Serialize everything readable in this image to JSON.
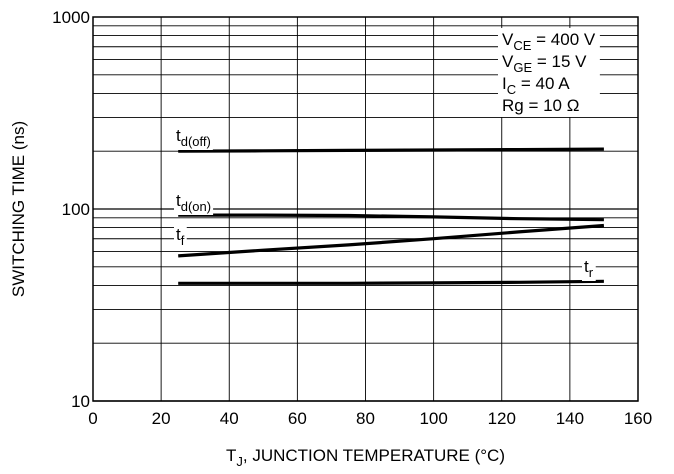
{
  "chart_data": {
    "type": "line",
    "xlabel_main": "T",
    "xlabel_sub": "J",
    "xlabel_rest": ", JUNCTION TEMPERATURE (°C)",
    "ylabel": "SWITCHING TIME (ns)",
    "x_scale": "linear",
    "y_scale": "log",
    "xlim": [
      0,
      160
    ],
    "ylim": [
      10,
      1000
    ],
    "x_ticks": [
      "0",
      "20",
      "40",
      "60",
      "80",
      "100",
      "120",
      "140",
      "160"
    ],
    "y_ticks": [
      "10",
      "100",
      "1000"
    ],
    "grid": true,
    "conditions": [
      {
        "main": "V",
        "sub": "CE",
        "rest": " = 400 V"
      },
      {
        "main": "V",
        "sub": "GE",
        "rest": " = 15 V"
      },
      {
        "main": "I",
        "sub": "C",
        "rest": " = 40 A"
      },
      {
        "main": "Rg = 10 Ω",
        "sub": "",
        "rest": ""
      }
    ],
    "series": [
      {
        "name_main": "t",
        "name_sub": "d(off)",
        "x": [
          25,
          50,
          75,
          100,
          125,
          150
        ],
        "y": [
          200,
          201,
          202,
          203,
          204,
          205
        ]
      },
      {
        "name_main": "t",
        "name_sub": "d(on)",
        "x": [
          25,
          50,
          75,
          100,
          125,
          150
        ],
        "y": [
          93,
          93,
          92.5,
          91,
          89,
          88
        ]
      },
      {
        "name_main": "t",
        "name_sub": "f",
        "x": [
          25,
          50,
          75,
          100,
          125,
          150
        ],
        "y": [
          57,
          61,
          65,
          70,
          76,
          82
        ]
      },
      {
        "name_main": "t",
        "name_sub": "r",
        "x": [
          25,
          50,
          75,
          100,
          125,
          150
        ],
        "y": [
          41,
          41,
          41,
          41.2,
          41.5,
          42
        ]
      }
    ]
  }
}
